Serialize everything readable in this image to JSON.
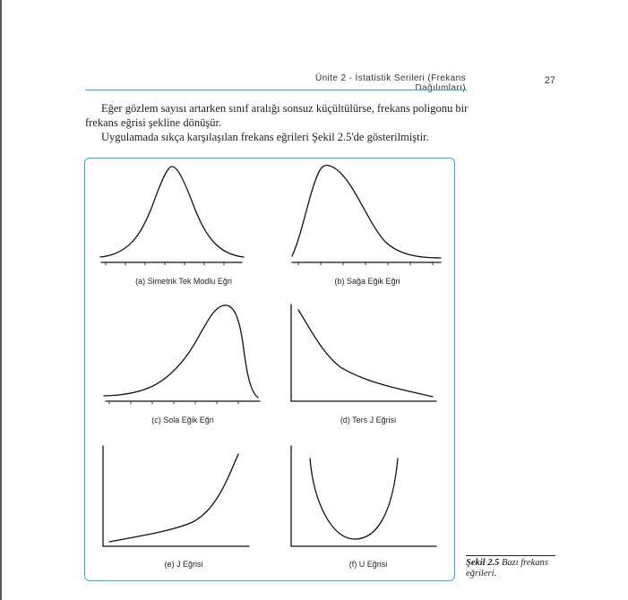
{
  "header": {
    "running_title": "Ünite 2 - İstatistik Serileri (Frekans Dağılımları)",
    "page_number": "27"
  },
  "body": {
    "paragraph1": "Eğer gözlem sayısı artarken sınıf aralığı sonsuz küçültülürse, frekans poligonu bir frekans eğrisi şekline dönüşür.",
    "paragraph2": "Uygulamada sıkça karşılaşılan frekans eğrileri Şekil 2.5'de gösterilmiştir."
  },
  "figure": {
    "panels": [
      {
        "id": "a",
        "caption": "(a) Simetrik Tek Modlu Eğri"
      },
      {
        "id": "b",
        "caption": "(b) Sağa Eğik Eğri"
      },
      {
        "id": "c",
        "caption": "(c) Sola Eğik Eğri"
      },
      {
        "id": "d",
        "caption": "(d) Ters J Eğrisi"
      },
      {
        "id": "e",
        "caption": "(e) J Eğrisi"
      },
      {
        "id": "f",
        "caption": "(f) U Eğrisi"
      }
    ],
    "caption": {
      "number": "Şekil 2.5",
      "text": "Bazı frekans eğrileri."
    }
  }
}
